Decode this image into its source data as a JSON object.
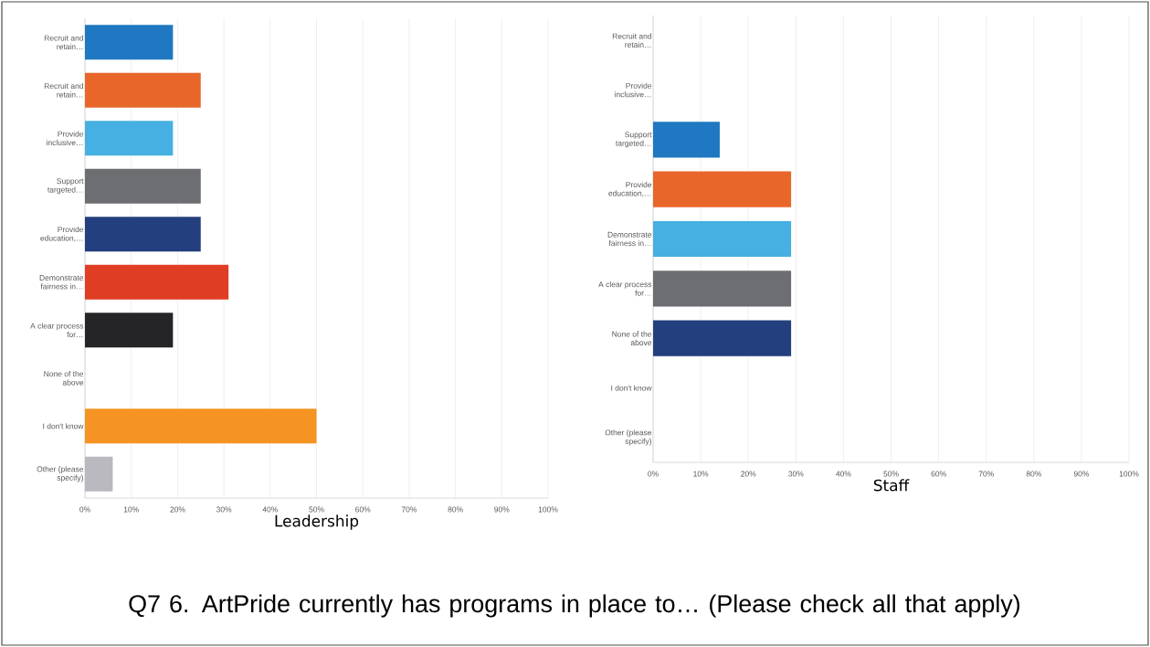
{
  "chart_data": [
    {
      "type": "bar",
      "orientation": "horizontal",
      "title": "Q7 6. ArtPride currently has programs in place to… (Please check all that apply)",
      "xlabel": "Leadership",
      "categories": [
        "Recruit and retain…",
        "Recruit and retain…",
        "Provide inclusive…",
        "Support targeted…",
        "Provide education,…",
        "Demonstrate fairness in…",
        "A clear process for…",
        "None of the above",
        "I don't know",
        "Other (please specify)"
      ],
      "values": [
        19,
        25,
        19,
        25,
        25,
        31,
        19,
        0,
        50,
        6
      ],
      "colors": [
        "#1f78c1",
        "#e8662a",
        "#45b0e1",
        "#6d6e71",
        "#233f7d",
        "#e03e24",
        "#252527",
        null,
        "#f59323",
        "#b9b9bf"
      ],
      "xlim": [
        0,
        100
      ],
      "xticks": [
        {
          "value": 0,
          "label": "0%"
        },
        {
          "value": 10,
          "label": "10%"
        },
        {
          "value": 20,
          "label": "20%"
        },
        {
          "value": 30,
          "label": "30%"
        },
        {
          "value": 40,
          "label": "40%"
        },
        {
          "value": 50,
          "label": "50%"
        },
        {
          "value": 60,
          "label": "60%"
        },
        {
          "value": 70,
          "label": "70%"
        },
        {
          "value": 80,
          "label": "80%"
        },
        {
          "value": 90,
          "label": "90%"
        },
        {
          "value": 100,
          "label": "100%"
        }
      ],
      "grid": "x"
    },
    {
      "type": "bar",
      "orientation": "horizontal",
      "xlabel": "Staff",
      "categories": [
        "Recruit and retain…",
        "Provide inclusive…",
        "Support targeted…",
        "Provide education,…",
        "Demonstrate fairness in…",
        "A clear process for…",
        "None of the above",
        "I don't know",
        "Other (please specify)"
      ],
      "values": [
        0,
        0,
        14,
        29,
        29,
        29,
        29,
        0,
        0
      ],
      "colors": [
        null,
        null,
        "#1f78c1",
        "#e8662a",
        "#45b0e1",
        "#6d6e71",
        "#233f7d",
        null,
        null
      ],
      "xlim": [
        0,
        100
      ],
      "xticks": [
        {
          "value": 0,
          "label": "0%"
        },
        {
          "value": 10,
          "label": "10%"
        },
        {
          "value": 20,
          "label": "20%"
        },
        {
          "value": 30,
          "label": "30%"
        },
        {
          "value": 40,
          "label": "40%"
        },
        {
          "value": 50,
          "label": "50%"
        },
        {
          "value": 60,
          "label": "60%"
        },
        {
          "value": 70,
          "label": "70%"
        },
        {
          "value": 80,
          "label": "80%"
        },
        {
          "value": 90,
          "label": "90%"
        },
        {
          "value": 100,
          "label": "100%"
        }
      ],
      "grid": "x"
    }
  ]
}
